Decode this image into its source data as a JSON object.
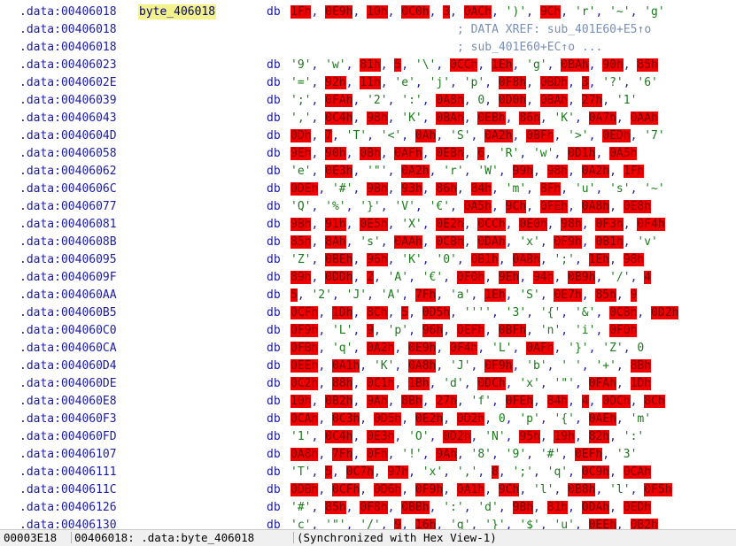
{
  "rows": [
    {
      "addr": ".data:00406018",
      "label": "byte_406018",
      "mnem": "db",
      "ops": [
        [
          "1Fh",
          1
        ],
        [
          "0E9h",
          1
        ],
        [
          "10h",
          1
        ],
        [
          "0C0h",
          1
        ],
        [
          "3",
          1
        ],
        [
          "0ACh",
          1
        ],
        [
          "')'",
          0
        ],
        [
          "9Ch",
          1
        ],
        [
          "'r'",
          0
        ],
        [
          "'~'",
          0
        ],
        [
          "'g'",
          0
        ]
      ]
    },
    {
      "addr": ".data:00406018",
      "comment": "; DATA XREF: sub_401E60+E5↑o"
    },
    {
      "addr": ".data:00406018",
      "comment": "; sub_401E60+EC↑o ..."
    },
    {
      "addr": ".data:00406023",
      "mnem": "db",
      "ops": [
        [
          "'9'",
          0
        ],
        [
          "'w'",
          0
        ],
        [
          "81h",
          1
        ],
        [
          "5",
          1
        ],
        [
          "'\\'",
          0
        ],
        [
          "0CCh",
          1
        ],
        [
          "1Eh",
          1
        ],
        [
          "'g'",
          0
        ],
        [
          "0BAh",
          1
        ],
        [
          "90h",
          1
        ],
        [
          "85h",
          1
        ]
      ]
    },
    {
      "addr": ".data:0040602E",
      "mnem": "db",
      "ops": [
        [
          "'='",
          0
        ],
        [
          "92h",
          1
        ],
        [
          "11h",
          1
        ],
        [
          "'e'",
          0
        ],
        [
          "'j'",
          0
        ],
        [
          "'p'",
          0
        ],
        [
          "0F8h",
          1
        ],
        [
          "0BDh",
          1
        ],
        [
          "3",
          1
        ],
        [
          "'?'",
          0
        ],
        [
          "'6'",
          0
        ]
      ]
    },
    {
      "addr": ".data:00406039",
      "mnem": "db",
      "ops": [
        [
          "';'",
          0
        ],
        [
          "0FAh",
          1
        ],
        [
          "'2'",
          0
        ],
        [
          "':'",
          0
        ],
        [
          "0A8h",
          1
        ],
        [
          "0",
          0
        ],
        [
          "0D0h",
          1
        ],
        [
          "0BAh",
          1
        ],
        [
          "27h",
          1
        ],
        [
          "'1'",
          0
        ]
      ]
    },
    {
      "addr": ".data:00406043",
      "mnem": "db",
      "ops": [
        [
          "','",
          0
        ],
        [
          "0C4h",
          1
        ],
        [
          "98h",
          1
        ],
        [
          "'K'",
          0
        ],
        [
          "0BAh",
          1
        ],
        [
          "0EBh",
          1
        ],
        [
          "86h",
          1
        ],
        [
          "'K'",
          0
        ],
        [
          "0A7h",
          1
        ],
        [
          "0AAh",
          1
        ]
      ]
    },
    {
      "addr": ".data:0040604D",
      "mnem": "db",
      "ops": [
        [
          "0Dh",
          1
        ],
        [
          "7",
          1
        ],
        [
          "'T'",
          0
        ],
        [
          "'<'",
          0
        ],
        [
          "0Ah",
          1
        ],
        [
          "'S'",
          0
        ],
        [
          "0A2h",
          1
        ],
        [
          "0BFh",
          1
        ],
        [
          "'>'",
          0
        ],
        [
          "0EDh",
          1
        ],
        [
          "'7'",
          0
        ]
      ]
    },
    {
      "addr": ".data:00406058",
      "mnem": "db",
      "ops": [
        [
          "9Eh",
          1
        ],
        [
          "90h",
          1
        ],
        [
          "0Bh",
          1
        ],
        [
          "0AFh",
          1
        ],
        [
          "0EBh",
          1
        ],
        [
          "6",
          1
        ],
        [
          "'R'",
          0
        ],
        [
          "'w'",
          0
        ],
        [
          "0D1h",
          1
        ],
        [
          "0A5h",
          1
        ]
      ]
    },
    {
      "addr": ".data:00406062",
      "mnem": "db",
      "ops": [
        [
          "'e'",
          0
        ],
        [
          "0E3h",
          1
        ],
        [
          "'\"'",
          0
        ],
        [
          "0A2h",
          1
        ],
        [
          "'r'",
          0
        ],
        [
          "'W'",
          0
        ],
        [
          "99h",
          1
        ],
        [
          "98h",
          1
        ],
        [
          "0A2h",
          1
        ],
        [
          "1Fh",
          1
        ]
      ]
    },
    {
      "addr": ".data:0040606C",
      "mnem": "db",
      "ops": [
        [
          "0DEh",
          1
        ],
        [
          "'#'",
          0
        ],
        [
          "9Bh",
          1
        ],
        [
          "93h",
          1
        ],
        [
          "86h",
          1
        ],
        [
          "84h",
          1
        ],
        [
          "'m'",
          0
        ],
        [
          "8Fh",
          1
        ],
        [
          "'u'",
          0
        ],
        [
          "'s'",
          0
        ],
        [
          "'~'",
          0
        ]
      ]
    },
    {
      "addr": ".data:00406077",
      "mnem": "db",
      "ops": [
        [
          "'Q'",
          0
        ],
        [
          "'%'",
          0
        ],
        [
          "'}'",
          0
        ],
        [
          "'V'",
          0
        ],
        [
          "'€'",
          0
        ],
        [
          "0A5h",
          1
        ],
        [
          "9Ch",
          1
        ],
        [
          "0FEh",
          1
        ],
        [
          "0A8h",
          1
        ],
        [
          "0E8h",
          1
        ]
      ]
    },
    {
      "addr": ".data:00406081",
      "mnem": "db",
      "ops": [
        [
          "9Bh",
          1
        ],
        [
          "91h",
          1
        ],
        [
          "0E5h",
          1
        ],
        [
          "'X'",
          0
        ],
        [
          "0E2h",
          1
        ],
        [
          "0CCh",
          1
        ],
        [
          "0E0h",
          1
        ],
        [
          "98h",
          1
        ],
        [
          "0F3h",
          1
        ],
        [
          "0F4h",
          1
        ]
      ]
    },
    {
      "addr": ".data:0040608B",
      "mnem": "db",
      "ops": [
        [
          "85h",
          1
        ],
        [
          "8Ah",
          1
        ],
        [
          "'s'",
          0
        ],
        [
          "0AAh",
          1
        ],
        [
          "0CBh",
          1
        ],
        [
          "0DAh",
          1
        ],
        [
          "'x'",
          0
        ],
        [
          "0F9h",
          1
        ],
        [
          "0B1h",
          1
        ],
        [
          "'v'",
          0
        ]
      ]
    },
    {
      "addr": ".data:00406095",
      "mnem": "db",
      "ops": [
        [
          "'Z'",
          0
        ],
        [
          "0BEh",
          1
        ],
        [
          "96h",
          1
        ],
        [
          "'K'",
          0
        ],
        [
          "'0'",
          0
        ],
        [
          "0B1h",
          1
        ],
        [
          "0ABh",
          1
        ],
        [
          "';'",
          0
        ],
        [
          "1Eh",
          1
        ],
        [
          "98h",
          1
        ]
      ]
    },
    {
      "addr": ".data:0040609F",
      "mnem": "db",
      "ops": [
        [
          "89h",
          1
        ],
        [
          "0DDh",
          1
        ],
        [
          "2",
          1
        ],
        [
          "'A'",
          0
        ],
        [
          "'€'",
          0
        ],
        [
          "0F0h",
          1
        ],
        [
          "9Eh",
          1
        ],
        [
          "94h",
          1
        ],
        [
          "0B9h",
          1
        ],
        [
          "'/'",
          0
        ],
        [
          "4",
          1
        ]
      ]
    },
    {
      "addr": ".data:004060AA",
      "mnem": "db",
      "ops": [
        [
          "5",
          1
        ],
        [
          "'2'",
          0
        ],
        [
          "'J'",
          0
        ],
        [
          "'A'",
          0
        ],
        [
          "7Fh",
          1
        ],
        [
          "'a'",
          0
        ],
        [
          "1Eh",
          1
        ],
        [
          "'S'",
          0
        ],
        [
          "0E7h",
          1
        ],
        [
          "85h",
          1
        ],
        [
          "9",
          1
        ]
      ]
    },
    {
      "addr": ".data:004060B5",
      "mnem": "db",
      "ops": [
        [
          "0CFh",
          1
        ],
        [
          "1Dh",
          1
        ],
        [
          "8Ch",
          1
        ],
        [
          "5",
          1
        ],
        [
          "0D5h",
          1
        ],
        [
          "''''",
          0
        ],
        [
          "'3'",
          0
        ],
        [
          "'{'",
          0
        ],
        [
          "'&'",
          0
        ],
        [
          "0CBh",
          1
        ],
        [
          "0D2h",
          1
        ]
      ]
    },
    {
      "addr": ".data:004060C0",
      "mnem": "db",
      "ops": [
        [
          "0F9h",
          1
        ],
        [
          "'L'",
          0
        ],
        [
          "9",
          1
        ],
        [
          "'p'",
          0
        ],
        [
          "96h",
          1
        ],
        [
          "0EFh",
          1
        ],
        [
          "0BFh",
          1
        ],
        [
          "'n'",
          0
        ],
        [
          "'i'",
          0
        ],
        [
          "0F0h",
          1
        ]
      ]
    },
    {
      "addr": ".data:004060CA",
      "mnem": "db",
      "ops": [
        [
          "0FBh",
          1
        ],
        [
          "'q'",
          0
        ],
        [
          "0A2h",
          1
        ],
        [
          "0E9h",
          1
        ],
        [
          "0F4h",
          1
        ],
        [
          "'L'",
          0
        ],
        [
          "0AFh",
          1
        ],
        [
          "'}'",
          0
        ],
        [
          "'Z'",
          0
        ],
        [
          "0",
          0
        ]
      ]
    },
    {
      "addr": ".data:004060D4",
      "mnem": "db",
      "ops": [
        [
          "0EEh",
          1
        ],
        [
          "0A1h",
          1
        ],
        [
          "'K'",
          0
        ],
        [
          "0A8h",
          1
        ],
        [
          "'J'",
          0
        ],
        [
          "0F9h",
          1
        ],
        [
          "'b'",
          0
        ],
        [
          "' '",
          0
        ],
        [
          "'+'",
          0
        ],
        [
          "8Bh",
          1
        ]
      ]
    },
    {
      "addr": ".data:004060DE",
      "mnem": "db",
      "ops": [
        [
          "0C2h",
          1
        ],
        [
          "88h",
          1
        ],
        [
          "0C1h",
          1
        ],
        [
          "1Bh",
          1
        ],
        [
          "'d'",
          0
        ],
        [
          "0DCh",
          1
        ],
        [
          "'x'",
          0
        ],
        [
          "'\"'",
          0
        ],
        [
          "0FAh",
          1
        ],
        [
          "1Dh",
          1
        ]
      ]
    },
    {
      "addr": ".data:004060E8",
      "mnem": "db",
      "ops": [
        [
          "10h",
          1
        ],
        [
          "0B2h",
          1
        ],
        [
          "9Ah",
          1
        ],
        [
          "8Bh",
          1
        ],
        [
          "27h",
          1
        ],
        [
          "'f'",
          0
        ],
        [
          "0FEh",
          1
        ],
        [
          "84h",
          1
        ],
        [
          "4",
          1
        ],
        [
          "0DCh",
          1
        ],
        [
          "8Ch",
          1
        ]
      ]
    },
    {
      "addr": ".data:004060F3",
      "mnem": "db",
      "ops": [
        [
          "0CAh",
          1
        ],
        [
          "0C3h",
          1
        ],
        [
          "0D5h",
          1
        ],
        [
          "0E2h",
          1
        ],
        [
          "0D2h",
          1
        ],
        [
          "0",
          0
        ],
        [
          "'p'",
          0
        ],
        [
          "'{'",
          0
        ],
        [
          "0AEh",
          1
        ],
        [
          "'m'",
          0
        ]
      ]
    },
    {
      "addr": ".data:004060FD",
      "mnem": "db",
      "ops": [
        [
          "'1'",
          0
        ],
        [
          "0C4h",
          1
        ],
        [
          "0E3h",
          1
        ],
        [
          "'O'",
          0
        ],
        [
          "0D2h",
          1
        ],
        [
          "'N'",
          0
        ],
        [
          "95h",
          1
        ],
        [
          "19h",
          1
        ],
        [
          "82h",
          1
        ],
        [
          "':'",
          0
        ]
      ]
    },
    {
      "addr": ".data:00406107",
      "mnem": "db",
      "ops": [
        [
          "0A8h",
          1
        ],
        [
          "7Fh",
          1
        ],
        [
          "0Fh",
          1
        ],
        [
          "'!'",
          0
        ],
        [
          "9Ah",
          1
        ],
        [
          "'8'",
          0
        ],
        [
          "'9'",
          0
        ],
        [
          "'#'",
          0
        ],
        [
          "0EFh",
          1
        ],
        [
          "'3'",
          0
        ]
      ]
    },
    {
      "addr": ".data:00406111",
      "mnem": "db",
      "ops": [
        [
          "'T'",
          0
        ],
        [
          "5",
          1
        ],
        [
          "0C7h",
          1
        ],
        [
          "97h",
          1
        ],
        [
          "'x'",
          0
        ],
        [
          "','",
          0
        ],
        [
          "8",
          1
        ],
        [
          "';'",
          0
        ],
        [
          "'q'",
          0
        ],
        [
          "0C9h",
          1
        ],
        [
          "0CAh",
          1
        ]
      ]
    },
    {
      "addr": ".data:0040611C",
      "mnem": "db",
      "ops": [
        [
          "0DBh",
          1
        ],
        [
          "0CFh",
          1
        ],
        [
          "0D6h",
          1
        ],
        [
          "0F9h",
          1
        ],
        [
          "0A1h",
          1
        ],
        [
          "9Ch",
          1
        ],
        [
          "'l'",
          0
        ],
        [
          "0B8h",
          1
        ],
        [
          "'l'",
          0
        ],
        [
          "0F5h",
          1
        ]
      ]
    },
    {
      "addr": ".data:00406126",
      "mnem": "db",
      "ops": [
        [
          "'#'",
          0
        ],
        [
          "85h",
          1
        ],
        [
          "0F8h",
          1
        ],
        [
          "0BBh",
          1
        ],
        [
          "':'",
          0
        ],
        [
          "'d'",
          0
        ],
        [
          "9Bh",
          1
        ],
        [
          "81h",
          1
        ],
        [
          "0DAh",
          1
        ],
        [
          "0EDh",
          1
        ]
      ]
    },
    {
      "addr": ".data:00406130",
      "mnem": "db",
      "ops": [
        [
          "'c'",
          0
        ],
        [
          "'\"'",
          0
        ],
        [
          "'/'",
          0
        ],
        [
          "9",
          1
        ],
        [
          "16h",
          1
        ],
        [
          "'g'",
          0
        ],
        [
          "'}'",
          0
        ],
        [
          "'$'",
          0
        ],
        [
          "'u'",
          0
        ],
        [
          "0EEh",
          1
        ],
        [
          "0B2h",
          1
        ]
      ]
    }
  ],
  "status": {
    "offset": "00003E18",
    "location": "00406018: .data:byte_406018",
    "sync": "(Synchronized with Hex View-1)"
  }
}
